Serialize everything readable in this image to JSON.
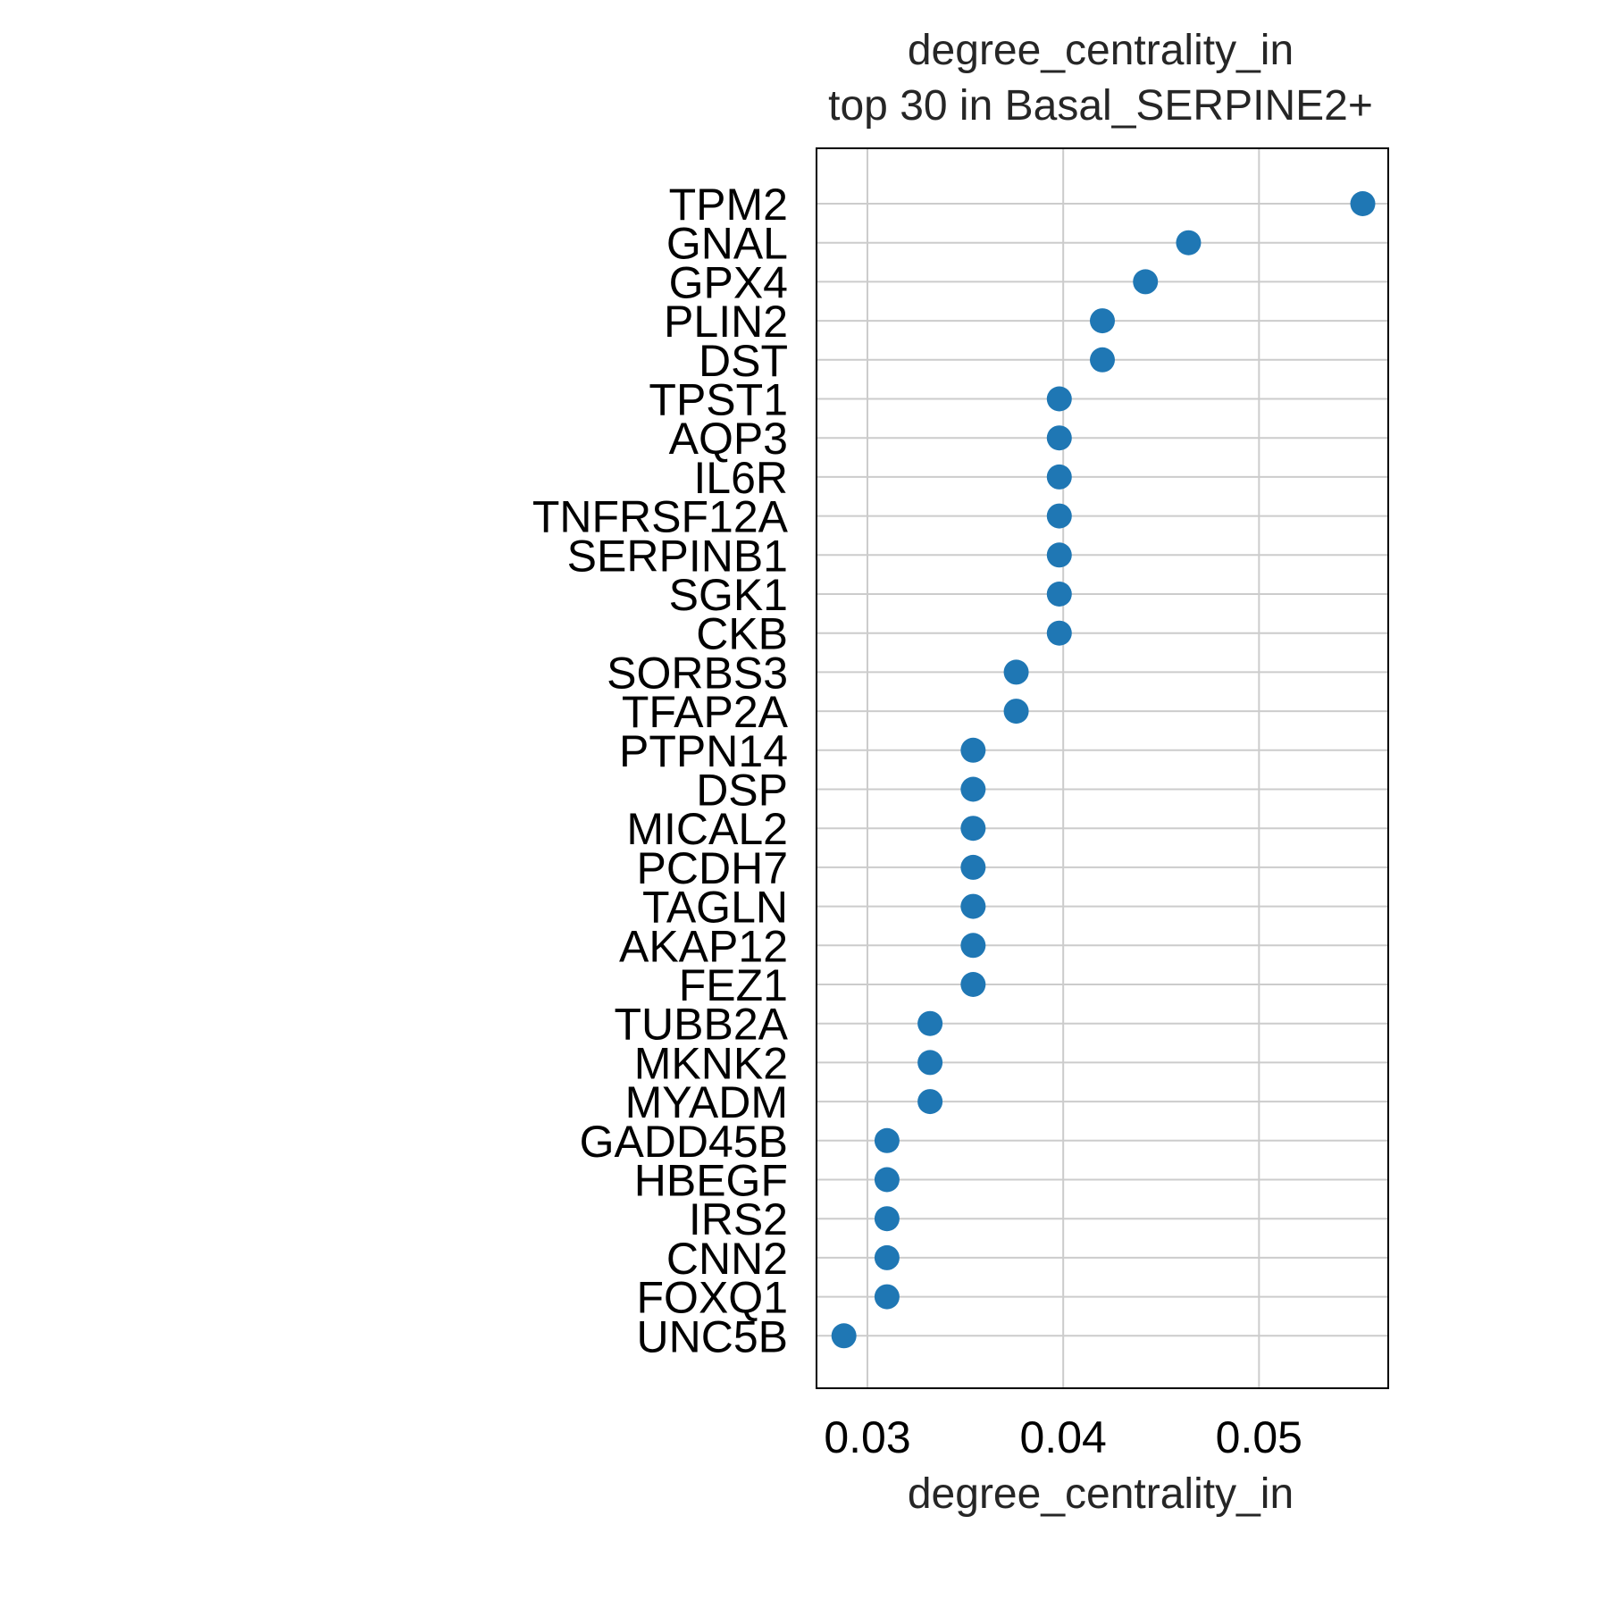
{
  "chart_data": {
    "type": "scatter",
    "title": "degree_centrality_in",
    "subtitle": "top 30 in Basal_SERPINE2+",
    "xlabel": "degree_centrality_in",
    "ylabel": "",
    "xlim": [
      0.0274,
      0.0566
    ],
    "xticks": [
      0.03,
      0.04,
      0.05
    ],
    "xtick_labels": [
      "0.03",
      "0.04",
      "0.05"
    ],
    "grid": true,
    "marker_color": "#1f77b4",
    "categories": [
      "TPM2",
      "GNAL",
      "GPX4",
      "PLIN2",
      "DST",
      "TPST1",
      "AQP3",
      "IL6R",
      "TNFRSF12A",
      "SERPINB1",
      "SGK1",
      "CKB",
      "SORBS3",
      "TFAP2A",
      "PTPN14",
      "DSP",
      "MICAL2",
      "PCDH7",
      "TAGLN",
      "AKAP12",
      "FEZ1",
      "TUBB2A",
      "MKNK2",
      "MYADM",
      "GADD45B",
      "HBEGF",
      "IRS2",
      "CNN2",
      "FOXQ1",
      "UNC5B"
    ],
    "values": [
      0.0553,
      0.0464,
      0.0442,
      0.042,
      0.042,
      0.0398,
      0.0398,
      0.0398,
      0.0398,
      0.0398,
      0.0398,
      0.0398,
      0.0376,
      0.0376,
      0.0354,
      0.0354,
      0.0354,
      0.0354,
      0.0354,
      0.0354,
      0.0354,
      0.0332,
      0.0332,
      0.0332,
      0.031,
      0.031,
      0.031,
      0.031,
      0.031,
      0.0288
    ]
  }
}
